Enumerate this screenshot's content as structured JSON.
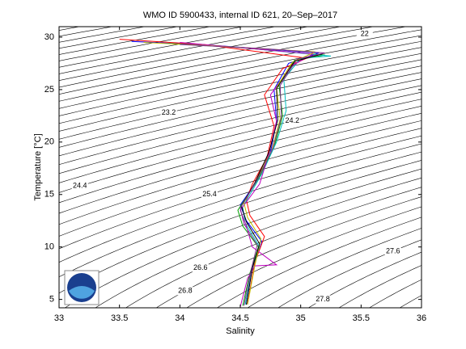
{
  "chart_data": {
    "type": "line",
    "title": "WMO ID 5900433, internal ID 621, 20–Sep–2017",
    "x_label": "Salinity",
    "y_label": "Temperature [°C]",
    "xlim": [
      33,
      36
    ],
    "ylim": [
      4.2,
      31
    ],
    "xticks": [
      33,
      33.5,
      34,
      34.5,
      35,
      35.5,
      36
    ],
    "yticks": [
      5,
      10,
      15,
      20,
      25,
      30
    ],
    "contour_levels": [
      20,
      20.2,
      20.4,
      20.6,
      20.8,
      21,
      21.2,
      21.4,
      21.6,
      21.8,
      22,
      22.2,
      22.4,
      22.6,
      22.8,
      23,
      23.2,
      23.4,
      23.6,
      23.8,
      24,
      24.2,
      24.4,
      24.6,
      24.8,
      25,
      25.2,
      25.4,
      25.6,
      25.8,
      26,
      26.2,
      26.4,
      26.6,
      26.8,
      27,
      27.2,
      27.4,
      27.6,
      27.8,
      28,
      28.2,
      28.4
    ],
    "contour_color": "#000000",
    "series": [
      {
        "color": "#0000ff",
        "x": [
          34.55,
          34.6,
          34.68,
          34.55,
          34.5,
          34.62,
          34.75,
          34.8,
          34.78,
          34.9,
          35.15,
          34.3,
          33.6
        ],
        "values": [
          4.5,
          8,
          10.5,
          12.5,
          14,
          16,
          19,
          22,
          25,
          27.5,
          28.5,
          29.2,
          29.6
        ]
      },
      {
        "color": "#00a000",
        "x": [
          34.52,
          34.58,
          34.65,
          34.52,
          34.48,
          34.65,
          34.78,
          34.85,
          34.82,
          34.95,
          35.2,
          34.5,
          33.9
        ],
        "values": [
          4.4,
          7.5,
          10,
          12,
          13.5,
          16.5,
          19.5,
          22.5,
          25.5,
          27.8,
          28.3,
          29,
          29.4
        ]
      },
      {
        "color": "#ff0000",
        "x": [
          34.56,
          34.62,
          34.7,
          34.58,
          34.55,
          34.6,
          34.72,
          34.78,
          34.7,
          34.85,
          35.05,
          34.2,
          33.5
        ],
        "values": [
          4.6,
          8.5,
          11,
          13,
          14.5,
          16,
          18.5,
          21.5,
          24.5,
          27,
          28,
          29.3,
          29.8
        ]
      },
      {
        "color": "#00bfbf",
        "x": [
          34.54,
          34.6,
          34.66,
          34.54,
          34.52,
          34.68,
          34.8,
          34.88,
          34.86,
          35.0,
          35.25,
          34.6
        ],
        "values": [
          4.5,
          8,
          10,
          12.3,
          13.8,
          17,
          20,
          23,
          26,
          28,
          28.2,
          28.9
        ]
      },
      {
        "color": "#bf00bf",
        "x": [
          34.5,
          34.56,
          34.62,
          34.8,
          34.6,
          34.55,
          34.5,
          34.66,
          34.74,
          34.8,
          34.75,
          34.92,
          35.1,
          34.0
        ],
        "values": [
          4.3,
          7,
          8.2,
          8.3,
          10,
          12,
          13.5,
          16,
          19,
          22,
          24.5,
          27.2,
          28.4,
          29.5
        ]
      },
      {
        "color": "#bfbf00",
        "x": [
          34.56,
          34.62,
          34.67,
          34.56,
          34.53,
          34.63,
          34.76,
          34.83,
          34.8,
          34.93,
          35.12,
          34.4,
          33.7
        ],
        "values": [
          4.5,
          8.2,
          10.8,
          12.8,
          14.2,
          16.3,
          19.2,
          22.2,
          25.2,
          27.6,
          28.6,
          29.1,
          29.5
        ]
      },
      {
        "color": "#000000",
        "x": [
          34.55,
          34.6,
          34.66,
          34.55,
          34.51,
          34.62,
          34.74,
          34.81,
          34.8,
          34.95,
          35.18
        ],
        "values": [
          4.5,
          8,
          10.3,
          12.4,
          13.9,
          16.1,
          19.1,
          22.1,
          25.1,
          27.7,
          28.4
        ]
      },
      {
        "color": "#7e2f8e",
        "x": [
          34.53,
          34.59,
          34.64,
          34.53,
          34.5,
          34.64,
          34.77,
          34.84,
          34.83,
          34.97,
          35.2,
          34.7,
          34.0
        ],
        "values": [
          4.4,
          7.8,
          10.2,
          12.2,
          13.7,
          16.4,
          19.4,
          22.4,
          25.4,
          27.9,
          28.5,
          28.9,
          29.3
        ]
      }
    ]
  }
}
